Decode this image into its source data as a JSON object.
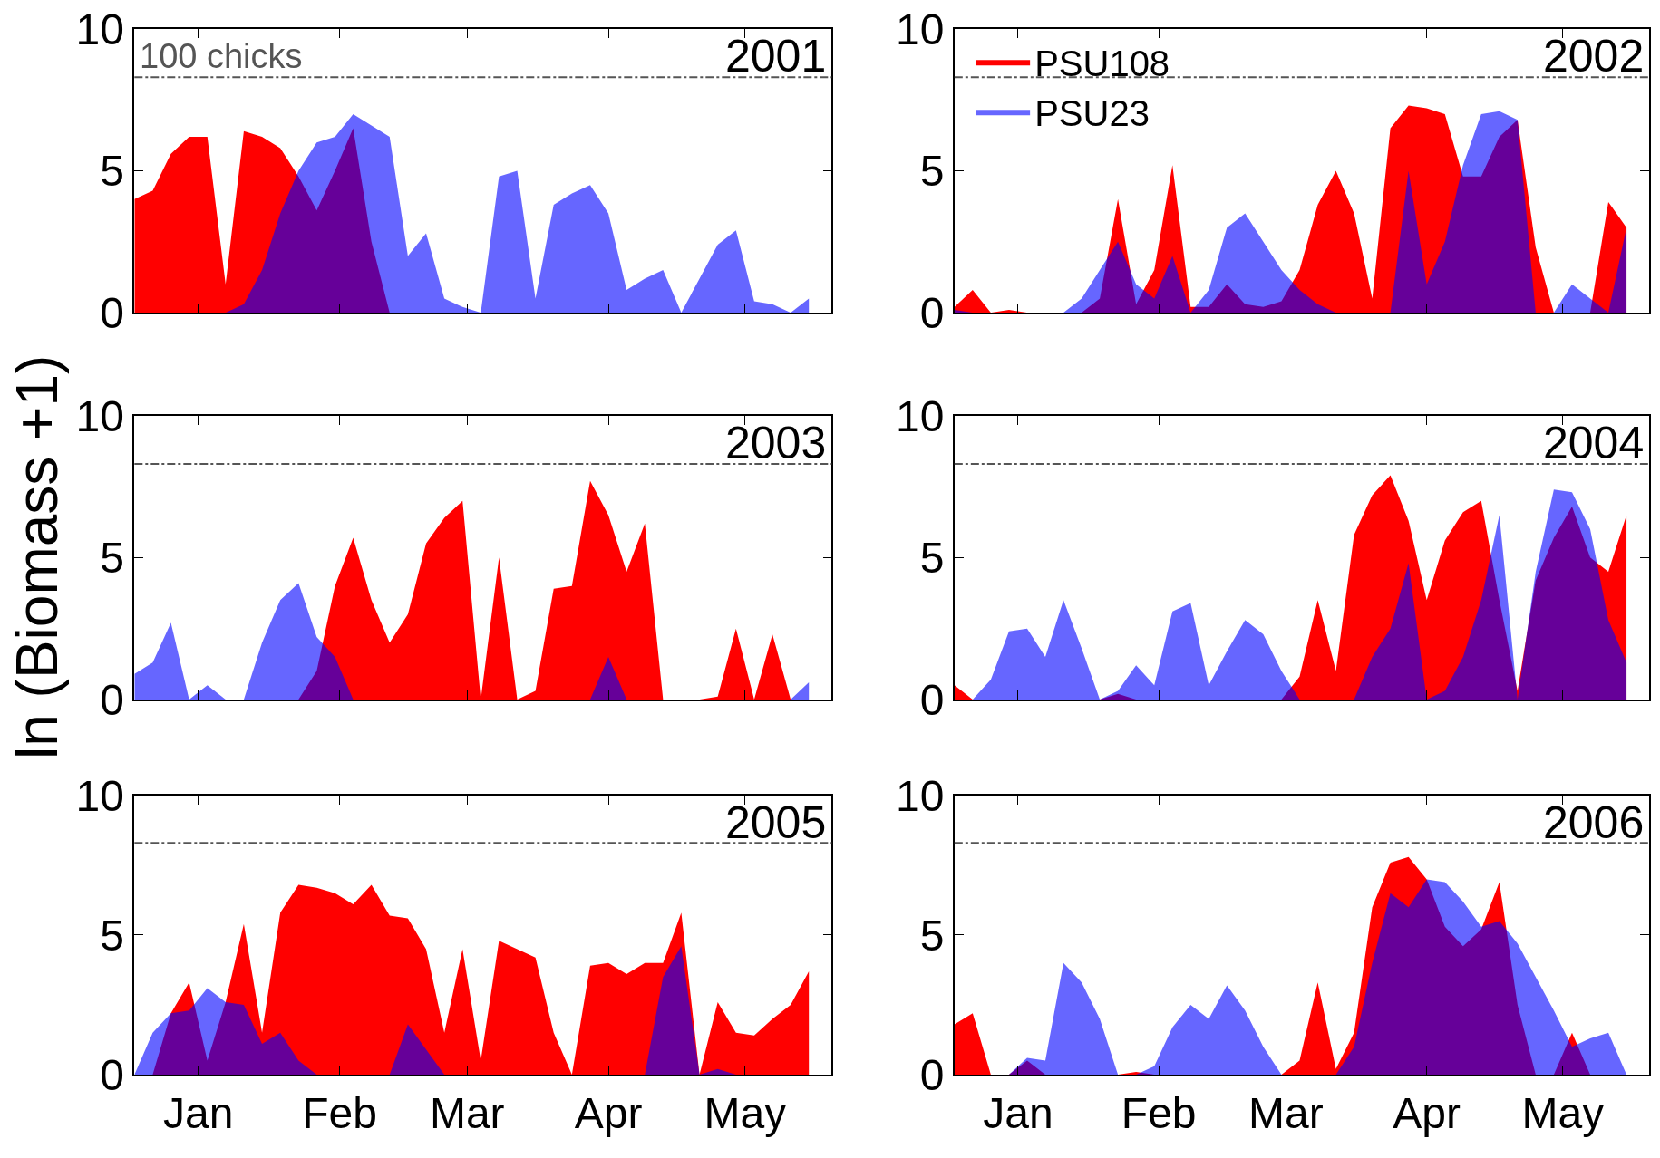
{
  "chart_data": [
    {
      "type": "area",
      "title": "2001",
      "x": [
        "--01-01",
        "--01-05",
        "--01-09",
        "--01-13",
        "--01-17",
        "--01-21",
        "--01-25",
        "--01-29",
        "--02-02",
        "--02-06",
        "--02-10",
        "--02-14",
        "--02-18",
        "--02-22",
        "--02-26",
        "--03-02",
        "--03-06",
        "--03-10",
        "--03-14",
        "--03-18",
        "--03-22",
        "--03-26",
        "--03-30",
        "--04-03",
        "--04-07",
        "--04-11",
        "--04-15",
        "--04-19",
        "--04-23",
        "--04-27",
        "--05-01",
        "--05-05",
        "--05-09",
        "--05-13",
        "--05-17",
        "--05-21",
        "--05-25",
        "--05-29"
      ],
      "xlim": [
        "--01-01",
        "--06-03"
      ],
      "xticks": [
        {
          "value": "--01-15",
          "label": "Jan"
        },
        {
          "value": "--02-15",
          "label": "Feb"
        },
        {
          "value": "--03-15",
          "label": "Mar"
        },
        {
          "value": "--04-15",
          "label": "Apr"
        },
        {
          "value": "--05-15",
          "label": "May"
        }
      ],
      "ylim": [
        0,
        10
      ],
      "yticks": [
        0,
        5,
        10
      ],
      "tick_labels": "y",
      "grid": false,
      "ref_lines": [
        {
          "axis": "y",
          "value": 8.3,
          "label": "100 chicks",
          "color": "#555555",
          "line_style": "dashdot"
        }
      ],
      "series": [
        {
          "color": "#ff0000",
          "values": [
            4.0,
            4.3,
            5.6,
            6.2,
            6.2,
            1.0,
            6.4,
            6.2,
            5.8,
            4.8,
            3.6,
            5.0,
            6.5,
            2.5,
            0,
            0,
            0,
            0,
            0,
            0,
            0,
            0,
            0,
            0,
            0,
            0,
            0,
            0,
            0,
            0,
            0,
            0,
            0,
            0,
            0,
            0,
            0,
            0
          ]
        },
        {
          "color": "#0000ff",
          "values": [
            0,
            0,
            0,
            0,
            0,
            0,
            0.3,
            1.5,
            3.5,
            5.0,
            6.0,
            6.2,
            7.0,
            6.6,
            6.2,
            2.0,
            2.8,
            0.5,
            0.2,
            0,
            4.8,
            5.0,
            0.5,
            3.8,
            4.2,
            4.5,
            3.5,
            0.8,
            1.2,
            1.5,
            0,
            1.2,
            2.4,
            2.9,
            0.4,
            0.3,
            0,
            0.5
          ]
        }
      ]
    },
    {
      "type": "area",
      "title": "2002",
      "x": [
        "--01-01",
        "--01-05",
        "--01-09",
        "--01-13",
        "--01-17",
        "--01-21",
        "--01-25",
        "--01-29",
        "--02-02",
        "--02-06",
        "--02-10",
        "--02-14",
        "--02-18",
        "--02-22",
        "--02-26",
        "--03-02",
        "--03-06",
        "--03-10",
        "--03-14",
        "--03-18",
        "--03-22",
        "--03-26",
        "--03-30",
        "--04-03",
        "--04-07",
        "--04-11",
        "--04-15",
        "--04-19",
        "--04-23",
        "--04-27",
        "--05-01",
        "--05-05",
        "--05-09",
        "--05-13",
        "--05-17",
        "--05-21",
        "--05-25",
        "--05-29"
      ],
      "xlim": [
        "--01-01",
        "--06-03"
      ],
      "xticks": [
        {
          "value": "--01-15",
          "label": "Jan"
        },
        {
          "value": "--02-15",
          "label": "Feb"
        },
        {
          "value": "--03-15",
          "label": "Mar"
        },
        {
          "value": "--04-15",
          "label": "Apr"
        },
        {
          "value": "--05-15",
          "label": "May"
        }
      ],
      "ylim": [
        0,
        10
      ],
      "yticks": [
        0,
        5,
        10
      ],
      "tick_labels": "y",
      "grid": false,
      "legend": "top left",
      "ref_lines": [
        {
          "axis": "y",
          "value": 8.3,
          "color": "#555555",
          "line_style": "dashdot"
        }
      ],
      "series": [
        {
          "name": "PSU108",
          "color": "#ff0000",
          "values": [
            0.2,
            0.8,
            0,
            0.1,
            0,
            0,
            0,
            0,
            0.5,
            4.0,
            0.3,
            1.5,
            5.2,
            0.2,
            0.2,
            1.0,
            0.3,
            0.2,
            0.4,
            1.5,
            3.8,
            5.0,
            3.5,
            0.5,
            6.5,
            7.3,
            7.2,
            7.0,
            4.8,
            4.8,
            6.2,
            6.8,
            2.3,
            0,
            0,
            0,
            3.9,
            3.0
          ]
        },
        {
          "name": "PSU23",
          "color": "#0000ff",
          "values": [
            0.1,
            0,
            0,
            0,
            0,
            0,
            0,
            0.5,
            1.5,
            2.5,
            1.0,
            0.5,
            2.0,
            0,
            0.8,
            3.0,
            3.5,
            2.5,
            1.5,
            0.8,
            0.3,
            0,
            0,
            0,
            0,
            5.0,
            1.0,
            2.5,
            5.2,
            7.0,
            7.1,
            6.8,
            0,
            0,
            1.0,
            0.5,
            0,
            3.0
          ]
        }
      ]
    },
    {
      "type": "area",
      "title": "2003",
      "ylabel": "ln (Biomass +1)",
      "x": [
        "--01-01",
        "--01-05",
        "--01-09",
        "--01-13",
        "--01-17",
        "--01-21",
        "--01-25",
        "--01-29",
        "--02-02",
        "--02-06",
        "--02-10",
        "--02-14",
        "--02-18",
        "--02-22",
        "--02-26",
        "--03-02",
        "--03-06",
        "--03-10",
        "--03-14",
        "--03-18",
        "--03-22",
        "--03-26",
        "--03-30",
        "--04-03",
        "--04-07",
        "--04-11",
        "--04-15",
        "--04-19",
        "--04-23",
        "--04-27",
        "--05-01",
        "--05-05",
        "--05-09",
        "--05-13",
        "--05-17",
        "--05-21",
        "--05-25",
        "--05-29"
      ],
      "xlim": [
        "--01-01",
        "--06-03"
      ],
      "xticks": [
        {
          "value": "--01-15",
          "label": "Jan"
        },
        {
          "value": "--02-15",
          "label": "Feb"
        },
        {
          "value": "--03-15",
          "label": "Mar"
        },
        {
          "value": "--04-15",
          "label": "Apr"
        },
        {
          "value": "--05-15",
          "label": "May"
        }
      ],
      "ylim": [
        0,
        10
      ],
      "yticks": [
        0,
        5,
        10
      ],
      "tick_labels": "y",
      "grid": false,
      "ref_lines": [
        {
          "axis": "y",
          "value": 8.3,
          "color": "#555555",
          "line_style": "dashdot"
        }
      ],
      "series": [
        {
          "color": "#ff0000",
          "values": [
            0,
            0,
            0,
            0,
            0,
            0,
            0,
            0,
            0,
            0,
            1.0,
            4.0,
            5.7,
            3.5,
            2.0,
            3.0,
            5.5,
            6.4,
            7.0,
            0,
            5.0,
            0,
            0.3,
            3.9,
            4.0,
            7.7,
            6.5,
            4.5,
            6.2,
            0,
            0,
            0,
            0.1,
            2.5,
            0,
            2.3,
            0,
            0
          ]
        },
        {
          "color": "#0000ff",
          "values": [
            0.9,
            1.3,
            2.7,
            0,
            0.5,
            0,
            0,
            2.0,
            3.5,
            4.1,
            2.2,
            1.5,
            0,
            0,
            0,
            0,
            0,
            0,
            0,
            0,
            0,
            0,
            0,
            0,
            0,
            0,
            1.5,
            0,
            0,
            0,
            0,
            0,
            0,
            0,
            0,
            0,
            0,
            0.6
          ]
        }
      ]
    },
    {
      "type": "area",
      "title": "2004",
      "x": [
        "--01-01",
        "--01-05",
        "--01-09",
        "--01-13",
        "--01-17",
        "--01-21",
        "--01-25",
        "--01-29",
        "--02-02",
        "--02-06",
        "--02-10",
        "--02-14",
        "--02-18",
        "--02-22",
        "--02-26",
        "--03-02",
        "--03-06",
        "--03-10",
        "--03-14",
        "--03-18",
        "--03-22",
        "--03-26",
        "--03-30",
        "--04-03",
        "--04-07",
        "--04-11",
        "--04-15",
        "--04-19",
        "--04-23",
        "--04-27",
        "--05-01",
        "--05-05",
        "--05-09",
        "--05-13",
        "--05-17",
        "--05-21",
        "--05-25",
        "--05-29"
      ],
      "xlim": [
        "--01-01",
        "--06-03"
      ],
      "xticks": [
        {
          "value": "--01-15",
          "label": "Jan"
        },
        {
          "value": "--02-15",
          "label": "Feb"
        },
        {
          "value": "--03-15",
          "label": "Mar"
        },
        {
          "value": "--04-15",
          "label": "Apr"
        },
        {
          "value": "--05-15",
          "label": "May"
        }
      ],
      "ylim": [
        0,
        10
      ],
      "yticks": [
        0,
        5,
        10
      ],
      "tick_labels": "y",
      "grid": false,
      "ref_lines": [
        {
          "axis": "y",
          "value": 8.3,
          "color": "#555555",
          "line_style": "dashdot"
        }
      ],
      "series": [
        {
          "color": "#ff0000",
          "values": [
            0.5,
            0,
            0,
            0,
            0,
            0,
            0,
            0,
            0,
            0.2,
            0,
            0,
            0,
            0,
            0,
            0,
            0,
            0,
            0,
            0.8,
            3.5,
            1.0,
            5.8,
            7.2,
            7.9,
            6.3,
            3.5,
            5.6,
            6.6,
            7.0,
            3.5,
            0.3,
            4.2,
            5.7,
            6.8,
            5.0,
            4.5,
            6.5
          ]
        },
        {
          "color": "#0000ff",
          "values": [
            0,
            0,
            0.7,
            2.4,
            2.5,
            1.5,
            3.5,
            1.8,
            0,
            0.3,
            1.2,
            0.5,
            3.1,
            3.4,
            0.5,
            1.7,
            2.8,
            2.3,
            1.0,
            0,
            0,
            0,
            0,
            1.5,
            2.5,
            4.8,
            0,
            0.3,
            1.5,
            3.5,
            6.5,
            0,
            4.5,
            7.4,
            7.3,
            6.0,
            2.8,
            1.3
          ]
        }
      ]
    },
    {
      "type": "area",
      "title": "2005",
      "x": [
        "--01-01",
        "--01-05",
        "--01-09",
        "--01-13",
        "--01-17",
        "--01-21",
        "--01-25",
        "--01-29",
        "--02-02",
        "--02-06",
        "--02-10",
        "--02-14",
        "--02-18",
        "--02-22",
        "--02-26",
        "--03-02",
        "--03-06",
        "--03-10",
        "--03-14",
        "--03-18",
        "--03-22",
        "--03-26",
        "--03-30",
        "--04-03",
        "--04-07",
        "--04-11",
        "--04-15",
        "--04-19",
        "--04-23",
        "--04-27",
        "--05-01",
        "--05-05",
        "--05-09",
        "--05-13",
        "--05-17",
        "--05-21",
        "--05-25",
        "--05-29"
      ],
      "xlim": [
        "--01-01",
        "--06-03"
      ],
      "xticks": [
        {
          "value": "--01-15",
          "label": "Jan"
        },
        {
          "value": "--02-15",
          "label": "Feb"
        },
        {
          "value": "--03-15",
          "label": "Mar"
        },
        {
          "value": "--04-15",
          "label": "Apr"
        },
        {
          "value": "--05-15",
          "label": "May"
        }
      ],
      "ylim": [
        0,
        10
      ],
      "yticks": [
        0,
        5,
        10
      ],
      "grid": false,
      "ref_lines": [
        {
          "axis": "y",
          "value": 8.3,
          "color": "#555555",
          "line_style": "dashdot"
        }
      ],
      "series": [
        {
          "color": "#ff0000",
          "values": [
            0,
            0,
            2.2,
            3.3,
            0.5,
            2.6,
            5.4,
            1.5,
            5.8,
            6.8,
            6.7,
            6.5,
            6.1,
            6.8,
            5.7,
            5.6,
            4.5,
            1.5,
            4.5,
            0.5,
            4.8,
            4.5,
            4.2,
            1.5,
            0,
            3.9,
            4.0,
            3.6,
            4.0,
            4.0,
            5.8,
            0,
            2.6,
            1.5,
            1.4,
            2.0,
            2.5,
            3.7
          ]
        },
        {
          "color": "#0000ff",
          "values": [
            0,
            1.5,
            2.2,
            2.3,
            3.1,
            2.6,
            2.5,
            1.1,
            1.5,
            0.5,
            0,
            0,
            0,
            0,
            0,
            1.8,
            0.9,
            0,
            0,
            0,
            0,
            0,
            0,
            0,
            0,
            0,
            0,
            0,
            0,
            3.5,
            4.6,
            0,
            0.2,
            0,
            0,
            0,
            0,
            0
          ]
        }
      ]
    },
    {
      "type": "area",
      "title": "2006",
      "x": [
        "--01-01",
        "--01-05",
        "--01-09",
        "--01-13",
        "--01-17",
        "--01-21",
        "--01-25",
        "--01-29",
        "--02-02",
        "--02-06",
        "--02-10",
        "--02-14",
        "--02-18",
        "--02-22",
        "--02-26",
        "--03-02",
        "--03-06",
        "--03-10",
        "--03-14",
        "--03-18",
        "--03-22",
        "--03-26",
        "--03-30",
        "--04-03",
        "--04-07",
        "--04-11",
        "--04-15",
        "--04-19",
        "--04-23",
        "--04-27",
        "--05-01",
        "--05-05",
        "--05-09",
        "--05-13",
        "--05-17",
        "--05-21",
        "--05-25",
        "--05-29"
      ],
      "xlim": [
        "--01-01",
        "--06-03"
      ],
      "xticks": [
        {
          "value": "--01-15",
          "label": "Jan"
        },
        {
          "value": "--02-15",
          "label": "Feb"
        },
        {
          "value": "--03-15",
          "label": "Mar"
        },
        {
          "value": "--04-15",
          "label": "Apr"
        },
        {
          "value": "--05-15",
          "label": "May"
        }
      ],
      "ylim": [
        0,
        10
      ],
      "yticks": [
        0,
        5,
        10
      ],
      "grid": false,
      "ref_lines": [
        {
          "axis": "y",
          "value": 8.3,
          "color": "#555555",
          "line_style": "dashdot"
        }
      ],
      "series": [
        {
          "color": "#ff0000",
          "values": [
            1.8,
            2.2,
            0,
            0,
            0.5,
            0,
            0,
            0,
            0,
            0,
            0.1,
            0,
            0,
            0,
            0,
            0,
            0,
            0,
            0,
            0.5,
            3.3,
            0.2,
            1.5,
            6.0,
            7.6,
            7.8,
            7.0,
            5.3,
            4.6,
            5.2,
            6.9,
            2.5,
            0,
            0,
            1.5,
            0,
            0,
            0
          ]
        },
        {
          "color": "#0000ff",
          "values": [
            0,
            0,
            0,
            0,
            0.6,
            0.5,
            4.0,
            3.3,
            2.0,
            0,
            0,
            0.3,
            1.7,
            2.5,
            2.0,
            3.2,
            2.3,
            1.0,
            0,
            0,
            0,
            0,
            1.0,
            4.0,
            6.5,
            6.0,
            7.0,
            6.9,
            6.2,
            5.3,
            5.5,
            4.7,
            3.5,
            2.3,
            1.0,
            1.3,
            1.5,
            0
          ]
        }
      ]
    }
  ]
}
